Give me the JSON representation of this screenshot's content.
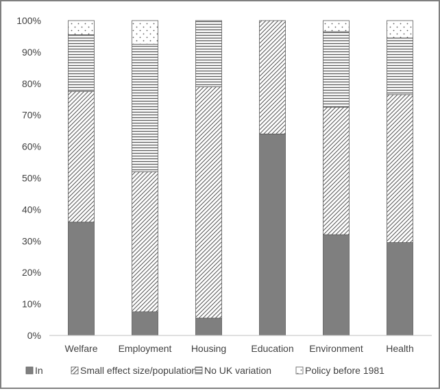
{
  "chart_data": {
    "type": "bar",
    "stacked": true,
    "categories": [
      "Welfare",
      "Employment",
      "Housing",
      "Education",
      "Environment",
      "Health"
    ],
    "series": [
      {
        "name": "In",
        "pattern": "solid",
        "values": [
          36,
          7.5,
          5.5,
          64,
          32,
          29.5
        ]
      },
      {
        "name": "Small effect size/population",
        "pattern": "diagonal",
        "values": [
          41.5,
          44.5,
          73.5,
          36,
          40.5,
          47
        ]
      },
      {
        "name": "No UK variation",
        "pattern": "horizontal",
        "values": [
          18,
          40.5,
          21,
          0,
          24,
          18
        ]
      },
      {
        "name": "Policy before 1981",
        "pattern": "dots",
        "values": [
          4.5,
          7.5,
          0,
          0,
          3.5,
          5.5
        ]
      }
    ],
    "yticks": [
      "0%",
      "10%",
      "20%",
      "30%",
      "40%",
      "50%",
      "60%",
      "70%",
      "80%",
      "90%",
      "100%"
    ],
    "ylim": [
      0,
      100
    ],
    "grid": false,
    "legend_position": "bottom",
    "colors": {
      "bar_fill": "#7f7f7f",
      "pattern_line": "#595959",
      "axis": "#bfbfbf",
      "border": "#7f7f7f",
      "text": "#404040"
    }
  }
}
